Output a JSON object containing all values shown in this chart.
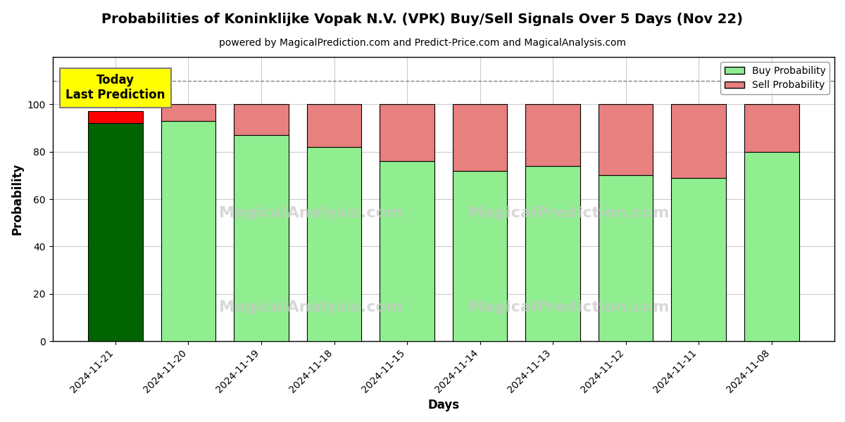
{
  "title": "Probabilities of Koninklijke Vopak N.V. (VPK) Buy/Sell Signals Over 5 Days (Nov 22)",
  "subtitle": "powered by MagicalPrediction.com and Predict-Price.com and MagicalAnalysis.com",
  "xlabel": "Days",
  "ylabel": "Probability",
  "categories": [
    "2024-11-21",
    "2024-11-20",
    "2024-11-19",
    "2024-11-18",
    "2024-11-15",
    "2024-11-14",
    "2024-11-13",
    "2024-11-12",
    "2024-11-11",
    "2024-11-08"
  ],
  "buy_values": [
    92,
    93,
    87,
    82,
    76,
    72,
    74,
    70,
    69,
    80
  ],
  "sell_values": [
    5,
    7,
    13,
    18,
    24,
    28,
    26,
    30,
    31,
    20
  ],
  "today_idx": 0,
  "buy_color_today": "#006400",
  "sell_color_today": "#ff0000",
  "buy_color_normal": "#90EE90",
  "sell_color_normal": "#e88080",
  "today_label_bg": "#ffff00",
  "today_label_text": "Today\nLast Prediction",
  "legend_buy_label": "Buy Probability",
  "legend_sell_label": "Sell Probability",
  "ylim": [
    0,
    120
  ],
  "yticks": [
    0,
    20,
    40,
    60,
    80,
    100
  ],
  "dashed_line_y": 110,
  "watermark_left": "MagicalAnalysis.com",
  "watermark_right": "MagicalPrediction.com",
  "background_color": "#ffffff",
  "grid_color": "#cccccc"
}
